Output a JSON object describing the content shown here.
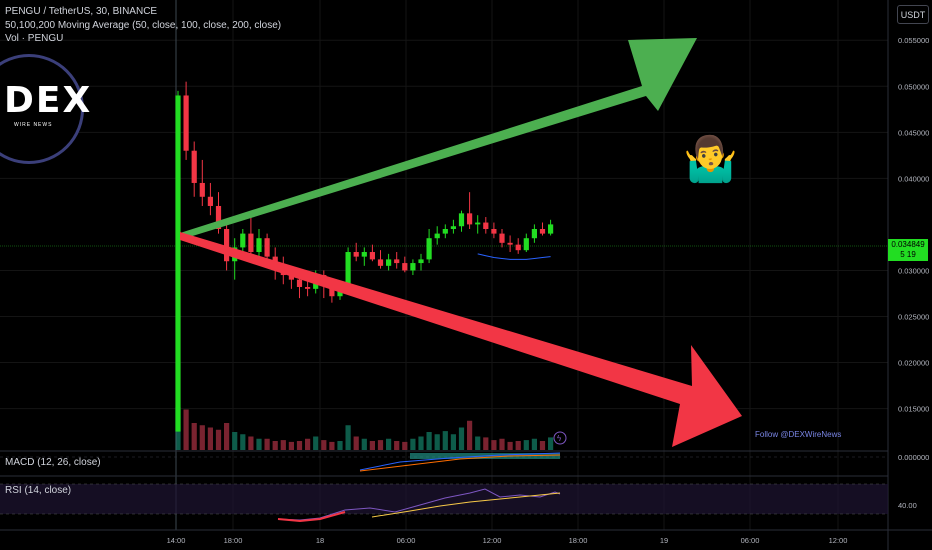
{
  "header": {
    "title": "PENGU / TetherUS, 30, BINANCE",
    "ma_label": "50,100,200 Moving Average (50, close, 100, close, 200, close)",
    "vol_label": "Vol · PENGU"
  },
  "currency": "USDT",
  "logo": {
    "text": "DEX",
    "sub": "WIRE NEWS"
  },
  "follow_text": "Follow @DEXWireNews",
  "last_price": {
    "value": "0.034849",
    "sub": "5 19"
  },
  "panes": {
    "macd_label": "MACD (12, 26, close)",
    "macd_axis": "0.000000",
    "rsi_label": "RSI (14, close)",
    "rsi_axis": "40.00"
  },
  "colors": {
    "up": "#22dd22",
    "down": "#f23645",
    "arrow_up": "#4caf50",
    "arrow_down": "#f23645"
  },
  "chart_data": {
    "type": "candlestick",
    "title": "PENGU / TetherUS, 30, BINANCE",
    "y_ticks": [
      "0.055000",
      "0.050000",
      "0.045000",
      "0.040000",
      "0.030000",
      "0.025000",
      "0.020000",
      "0.015000"
    ],
    "x_ticks": [
      "14:00",
      "18:00",
      "18",
      "06:00",
      "12:00",
      "18:00",
      "19",
      "06:00",
      "12:00"
    ],
    "ylim": [
      0.0105,
      0.0585
    ],
    "candles": [
      {
        "o": 0.0125,
        "h": 0.0495,
        "l": 0.0125,
        "c": 0.049
      },
      {
        "o": 0.049,
        "h": 0.0505,
        "l": 0.042,
        "c": 0.043
      },
      {
        "o": 0.043,
        "h": 0.044,
        "l": 0.038,
        "c": 0.0395
      },
      {
        "o": 0.0395,
        "h": 0.042,
        "l": 0.037,
        "c": 0.038
      },
      {
        "o": 0.038,
        "h": 0.0395,
        "l": 0.036,
        "c": 0.037
      },
      {
        "o": 0.037,
        "h": 0.0385,
        "l": 0.034,
        "c": 0.0345
      },
      {
        "o": 0.0345,
        "h": 0.0355,
        "l": 0.03,
        "c": 0.031
      },
      {
        "o": 0.031,
        "h": 0.0335,
        "l": 0.029,
        "c": 0.0325
      },
      {
        "o": 0.0325,
        "h": 0.0345,
        "l": 0.0315,
        "c": 0.034
      },
      {
        "o": 0.034,
        "h": 0.036,
        "l": 0.0315,
        "c": 0.032
      },
      {
        "o": 0.032,
        "h": 0.0345,
        "l": 0.031,
        "c": 0.0335
      },
      {
        "o": 0.0335,
        "h": 0.034,
        "l": 0.031,
        "c": 0.0315
      },
      {
        "o": 0.0315,
        "h": 0.0325,
        "l": 0.029,
        "c": 0.0305
      },
      {
        "o": 0.0305,
        "h": 0.0315,
        "l": 0.0285,
        "c": 0.0295
      },
      {
        "o": 0.0295,
        "h": 0.0305,
        "l": 0.028,
        "c": 0.029
      },
      {
        "o": 0.029,
        "h": 0.03,
        "l": 0.027,
        "c": 0.0282
      },
      {
        "o": 0.0282,
        "h": 0.0292,
        "l": 0.0272,
        "c": 0.028
      },
      {
        "o": 0.028,
        "h": 0.03,
        "l": 0.0275,
        "c": 0.0295
      },
      {
        "o": 0.0295,
        "h": 0.03,
        "l": 0.027,
        "c": 0.0285
      },
      {
        "o": 0.0285,
        "h": 0.029,
        "l": 0.0265,
        "c": 0.0272
      },
      {
        "o": 0.0272,
        "h": 0.0285,
        "l": 0.0268,
        "c": 0.0278
      },
      {
        "o": 0.0278,
        "h": 0.0325,
        "l": 0.0275,
        "c": 0.032
      },
      {
        "o": 0.032,
        "h": 0.033,
        "l": 0.031,
        "c": 0.0315
      },
      {
        "o": 0.0315,
        "h": 0.0325,
        "l": 0.0305,
        "c": 0.032
      },
      {
        "o": 0.032,
        "h": 0.0328,
        "l": 0.031,
        "c": 0.0312
      },
      {
        "o": 0.0312,
        "h": 0.0322,
        "l": 0.0302,
        "c": 0.0305
      },
      {
        "o": 0.0305,
        "h": 0.0318,
        "l": 0.03,
        "c": 0.0312
      },
      {
        "o": 0.0312,
        "h": 0.032,
        "l": 0.0302,
        "c": 0.0308
      },
      {
        "o": 0.0308,
        "h": 0.0315,
        "l": 0.0298,
        "c": 0.03
      },
      {
        "o": 0.03,
        "h": 0.0312,
        "l": 0.0295,
        "c": 0.0308
      },
      {
        "o": 0.0308,
        "h": 0.0318,
        "l": 0.03,
        "c": 0.0312
      },
      {
        "o": 0.0312,
        "h": 0.0345,
        "l": 0.0308,
        "c": 0.0335
      },
      {
        "o": 0.0335,
        "h": 0.0348,
        "l": 0.0328,
        "c": 0.034
      },
      {
        "o": 0.034,
        "h": 0.035,
        "l": 0.0335,
        "c": 0.0345
      },
      {
        "o": 0.0345,
        "h": 0.0355,
        "l": 0.034,
        "c": 0.0348
      },
      {
        "o": 0.0348,
        "h": 0.0365,
        "l": 0.0342,
        "c": 0.0362
      },
      {
        "o": 0.0362,
        "h": 0.0385,
        "l": 0.0345,
        "c": 0.035
      },
      {
        "o": 0.035,
        "h": 0.036,
        "l": 0.034,
        "c": 0.0352
      },
      {
        "o": 0.0352,
        "h": 0.0358,
        "l": 0.034,
        "c": 0.0345
      },
      {
        "o": 0.0345,
        "h": 0.0352,
        "l": 0.0335,
        "c": 0.034
      },
      {
        "o": 0.034,
        "h": 0.0345,
        "l": 0.0325,
        "c": 0.033
      },
      {
        "o": 0.033,
        "h": 0.0338,
        "l": 0.032,
        "c": 0.0328
      },
      {
        "o": 0.0328,
        "h": 0.0335,
        "l": 0.0318,
        "c": 0.0322
      },
      {
        "o": 0.0322,
        "h": 0.034,
        "l": 0.032,
        "c": 0.0335
      },
      {
        "o": 0.0335,
        "h": 0.035,
        "l": 0.033,
        "c": 0.0345
      },
      {
        "o": 0.0345,
        "h": 0.0352,
        "l": 0.0338,
        "c": 0.034
      },
      {
        "o": 0.034,
        "h": 0.0355,
        "l": 0.0338,
        "c": 0.035
      }
    ],
    "volumes": [
      0.95,
      0.9,
      0.6,
      0.55,
      0.5,
      0.45,
      0.6,
      0.4,
      0.35,
      0.3,
      0.25,
      0.25,
      0.2,
      0.22,
      0.18,
      0.2,
      0.25,
      0.3,
      0.22,
      0.18,
      0.2,
      0.55,
      0.3,
      0.25,
      0.2,
      0.22,
      0.25,
      0.2,
      0.18,
      0.25,
      0.3,
      0.4,
      0.35,
      0.42,
      0.35,
      0.5,
      0.65,
      0.3,
      0.28,
      0.22,
      0.25,
      0.18,
      0.2,
      0.22,
      0.25,
      0.2,
      0.28
    ],
    "ma_line": [
      0.0318,
      0.0316,
      0.0314,
      0.0313,
      0.0312,
      0.0312,
      0.0312,
      0.0313,
      0.0314,
      0.0315
    ]
  }
}
